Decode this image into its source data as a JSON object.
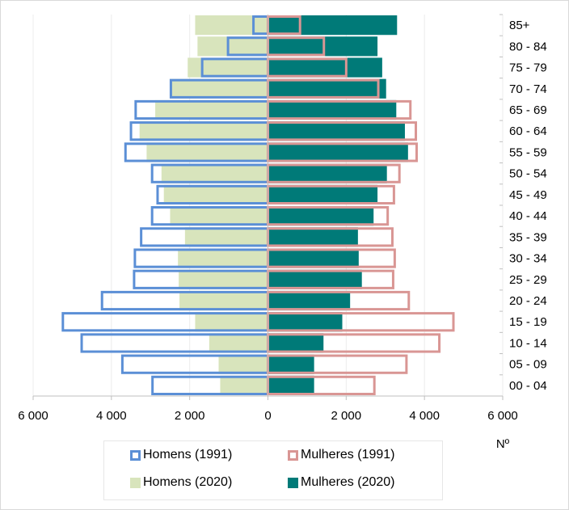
{
  "chart_data": {
    "type": "bar",
    "orientation": "horizontal",
    "subtype": "population-pyramid",
    "categories": [
      "00 - 04",
      "05 - 09",
      "10 - 14",
      "15 - 19",
      "20 - 24",
      "25 - 29",
      "30 - 34",
      "35 - 39",
      "40 - 44",
      "45 - 49",
      "50 - 54",
      "55 - 59",
      "60 - 64",
      "65 - 69",
      "70 - 74",
      "75 - 79",
      "80 - 84",
      "85+"
    ],
    "series": [
      {
        "name": "Homens (1991)",
        "side": "left",
        "style": "outline",
        "color": "#5b8fd6",
        "values": [
          2950,
          3720,
          4760,
          5240,
          4240,
          3420,
          3400,
          3240,
          2960,
          2820,
          2960,
          3640,
          3500,
          3380,
          2480,
          1680,
          1020,
          370
        ]
      },
      {
        "name": "Mulheres (1991)",
        "side": "right",
        "style": "outline",
        "color": "#d99694",
        "values": [
          2720,
          3540,
          4380,
          4740,
          3600,
          3200,
          3240,
          3180,
          3060,
          3220,
          3360,
          3800,
          3780,
          3640,
          2820,
          2000,
          1430,
          820
        ]
      },
      {
        "name": "Homens (2020)",
        "side": "left",
        "style": "fill",
        "color": "#d8e4bc",
        "values": [
          1220,
          1260,
          1500,
          1860,
          2260,
          2280,
          2300,
          2120,
          2500,
          2660,
          2720,
          3100,
          3280,
          2880,
          2500,
          2050,
          1800,
          1860
        ]
      },
      {
        "name": "Mulheres (2020)",
        "side": "right",
        "style": "fill",
        "color": "#007a78",
        "values": [
          1180,
          1180,
          1420,
          1900,
          2100,
          2400,
          2320,
          2300,
          2700,
          2800,
          3040,
          3580,
          3500,
          3280,
          3020,
          2920,
          2800,
          3300
        ]
      }
    ],
    "xlim": [
      -6000,
      6000
    ],
    "x_ticks": [
      {
        "value": -6000,
        "label": "6 000"
      },
      {
        "value": -4000,
        "label": "4 000"
      },
      {
        "value": -2000,
        "label": "2 000"
      },
      {
        "value": 0,
        "label": "0"
      },
      {
        "value": 2000,
        "label": "2 000"
      },
      {
        "value": 4000,
        "label": "4 000"
      },
      {
        "value": 6000,
        "label": "6 000"
      }
    ],
    "xlabel": "Nº",
    "title": "",
    "grid": "vertical",
    "legend_position": "bottom"
  },
  "legend": {
    "homens_1991": "Homens (1991)",
    "mulheres_1991": "Mulheres (1991)",
    "homens_2020": "Homens (2020)",
    "mulheres_2020": "Mulheres (2020)"
  },
  "colors": {
    "homens_1991": "#5b8fd6",
    "mulheres_1991": "#d99694",
    "homens_2020": "#d8e4bc",
    "mulheres_2020": "#007a78"
  }
}
